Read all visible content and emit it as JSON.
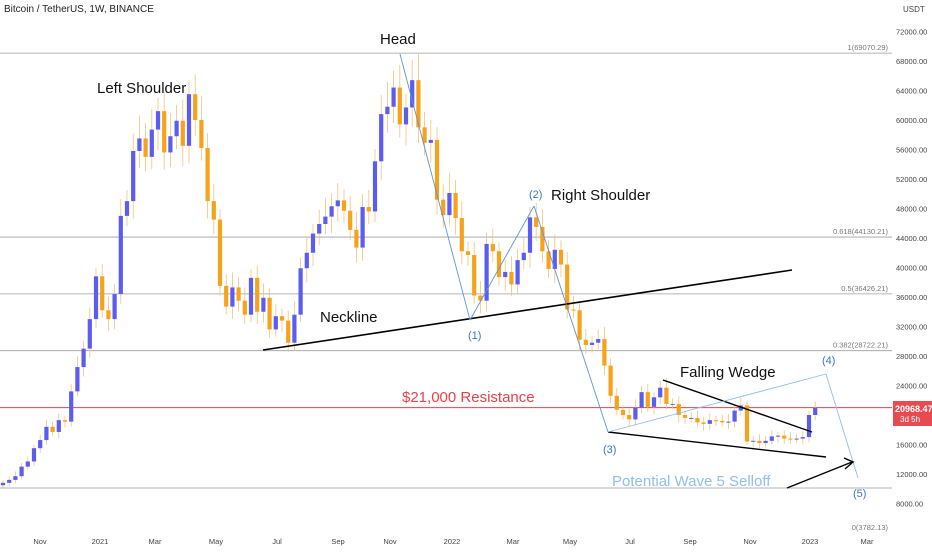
{
  "header": {
    "title": "Bitcoin / TetherUS, 1W, BINANCE",
    "currency": "USDT"
  },
  "colors": {
    "up": "#5b5cf0",
    "down": "#f7a21b",
    "wick": "#f2c27a",
    "resistance": "#e8414a",
    "annotation_blue": "#3a78c2",
    "wave_light": "#8fbfe8",
    "fib": "#9e9e9e",
    "price_tag": "#e84a52"
  },
  "price_tag": {
    "value": "20968.47",
    "countdown": "3d 5h"
  },
  "annotations": {
    "head": "Head",
    "left_shoulder": "Left Shoulder",
    "right_shoulder": "Right Shoulder",
    "neckline": "Neckline",
    "falling_wedge": "Falling Wedge",
    "resistance": "$21,000 Resistance",
    "selloff": "Potential Wave 5 Selloff",
    "wave1": "(1)",
    "wave2": "(2)",
    "wave3": "(3)",
    "wave4": "(4)",
    "wave5": "(5)"
  },
  "chart_data": {
    "type": "candlestick",
    "title": "Bitcoin / TetherUS, 1W, BINANCE",
    "y_unit": "USDT",
    "ylim": [
      6000,
      76000
    ],
    "y_ticks": [
      "72000.00",
      "68000.00",
      "64000.00",
      "60000.00",
      "56000.00",
      "52000.00",
      "48000.00",
      "44000.00",
      "40000.00",
      "36000.00",
      "32000.00",
      "28000.00",
      "24000.00",
      "20000.00",
      "16000.00",
      "12000.00",
      "8000.00"
    ],
    "x_ticks": [
      "Nov",
      "2021",
      "Mar",
      "May",
      "Jul",
      "Sep",
      "Nov",
      "2022",
      "Mar",
      "May",
      "Jul",
      "Sep",
      "Nov",
      "2023",
      "Mar"
    ],
    "fib_levels": [
      {
        "label": "1(69070.29)",
        "value": 69070.29
      },
      {
        "label": "0.618(44130.21)",
        "value": 44130.21
      },
      {
        "label": "0.5(36426.21)",
        "value": 36426.21
      },
      {
        "label": "0.382(28722.21)",
        "value": 28722.21
      },
      {
        "label": "0(3782.13)",
        "value": 3782.13
      }
    ],
    "resistance": 21000,
    "last_price": 20968.47,
    "closes": [
      10800,
      11200,
      11700,
      13000,
      13700,
      15500,
      16600,
      18400,
      17700,
      19300,
      19100,
      23200,
      26500,
      29000,
      33000,
      38800,
      34200,
      33000,
      36400,
      47000,
      49000,
      55800,
      57500,
      55000,
      58700,
      61200,
      55600,
      57800,
      59900,
      56500,
      63500,
      60000,
      56200,
      49000,
      46500,
      37500,
      34700,
      37300,
      35500,
      33600,
      38600,
      34000,
      35900,
      31600,
      33400,
      32800,
      29800,
      33600,
      39900,
      42000,
      44600,
      45900,
      46900,
      48300,
      49100,
      47700,
      45100,
      42700,
      48200,
      47600,
      54400,
      60800,
      61800,
      64400,
      59400,
      61700,
      65400,
      59000,
      56900,
      57300,
      49200,
      47100,
      50100,
      46700,
      42200,
      41700,
      36200,
      35500,
      43200,
      42200,
      38700,
      39400,
      37700,
      41000,
      42000,
      46800,
      45500,
      42200,
      39800,
      42400,
      40400,
      34300,
      34200,
      30200,
      29500,
      29800,
      30300,
      26700,
      22600,
      20700,
      20000,
      19400,
      21000,
      23100,
      21100,
      22400,
      23700,
      21500,
      21500,
      20000,
      19600,
      19600,
      19000,
      18800,
      19300,
      19200,
      19000,
      19100,
      20600,
      21300,
      16400,
      16500,
      16200,
      16500,
      17100,
      17200,
      16800,
      16700,
      16800,
      17000,
      20000,
      20968
    ]
  }
}
